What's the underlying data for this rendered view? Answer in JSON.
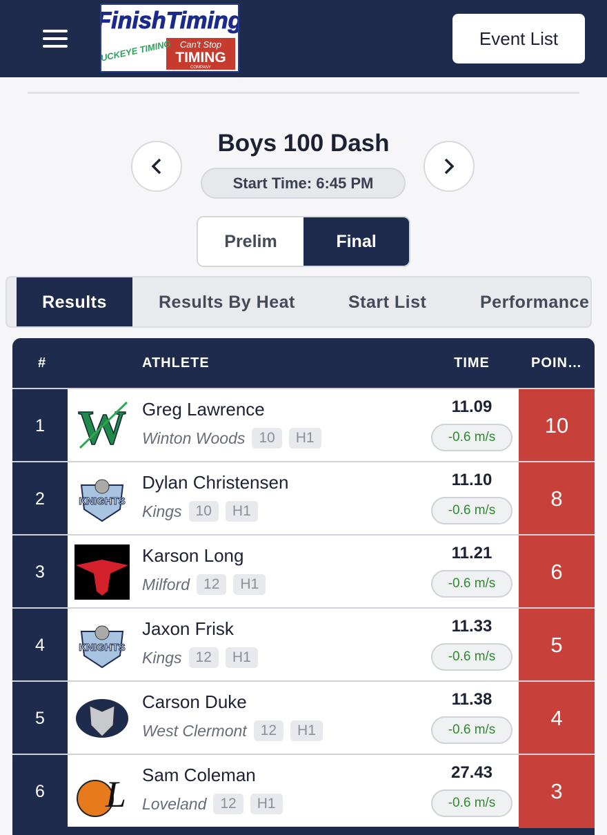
{
  "header": {
    "logo": {
      "brand": "FinishTiming",
      "partner_left": "BUCKEYE TIMING",
      "partner_right_top": "Can't Stop",
      "partner_right_main": "TIMING",
      "partner_right_bottom": "COMPANY"
    },
    "event_list_button": "Event List"
  },
  "event": {
    "title": "Boys 100 Dash",
    "start_time": "Start Time: 6:45 PM"
  },
  "rounds": [
    "Prelim",
    "Final"
  ],
  "views": [
    "Results",
    "Results By Heat",
    "Start List",
    "Performance"
  ],
  "table": {
    "headers": [
      "#",
      "ATHLETE",
      "TIME",
      "POIN…"
    ],
    "rows": [
      {
        "place": 1,
        "name": "Greg Lawrence",
        "team": "Winton Woods",
        "grade": 10,
        "heat": "H1",
        "time": "11.09",
        "wind": "-0.6 m/s",
        "points": 10,
        "logo": "W"
      },
      {
        "place": 2,
        "name": "Dylan Christensen",
        "team": "Kings",
        "grade": 10,
        "heat": "H1",
        "time": "11.10",
        "wind": "-0.6 m/s",
        "points": 8,
        "logo": "KNIGHTS"
      },
      {
        "place": 3,
        "name": "Karson Long",
        "team": "Milford",
        "grade": 12,
        "heat": "H1",
        "time": "11.21",
        "wind": "-0.6 m/s",
        "points": 6
      },
      {
        "place": 4,
        "name": "Jaxon Frisk",
        "team": "Kings",
        "grade": 12,
        "heat": "H1",
        "time": "11.33",
        "wind": "-0.6 m/s",
        "points": 5,
        "logo": "KNIGHTS"
      },
      {
        "place": 5,
        "name": "Carson Duke",
        "team": "West Clermont",
        "grade": 12,
        "heat": "H1",
        "time": "11.38",
        "wind": "-0.6 m/s",
        "points": 4
      },
      {
        "place": 6,
        "name": "Sam Coleman",
        "team": "Loveland",
        "grade": 12,
        "heat": "H1",
        "time": "27.43",
        "wind": "-0.6 m/s",
        "points": 3,
        "logo": "L"
      }
    ]
  }
}
